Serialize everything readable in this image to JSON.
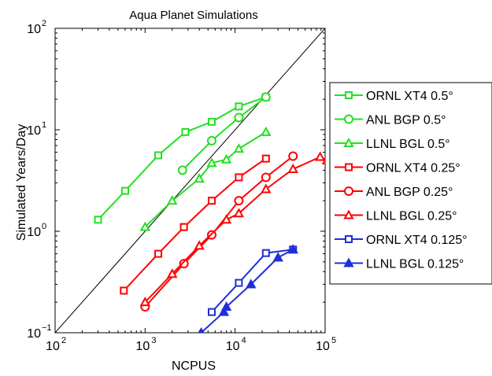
{
  "chart_data": {
    "type": "line",
    "title": "Aqua Planet Simulations",
    "xlabel": "NCPUS",
    "ylabel": "Simulated Years/Day",
    "xscale": "log",
    "yscale": "log",
    "xlim": [
      100,
      100000
    ],
    "ylim": [
      0.1,
      100
    ],
    "x_ticks": [
      {
        "value": 100,
        "base": "10",
        "exp": "2"
      },
      {
        "value": 1000,
        "base": "10",
        "exp": "3"
      },
      {
        "value": 10000,
        "base": "10",
        "exp": "4"
      },
      {
        "value": 100000,
        "base": "10",
        "exp": "5"
      }
    ],
    "y_ticks": [
      {
        "value": 0.1,
        "base": "10",
        "exp": "−1"
      },
      {
        "value": 1,
        "base": "10",
        "exp": "0"
      },
      {
        "value": 10,
        "base": "10",
        "exp": "1"
      },
      {
        "value": 100,
        "base": "10",
        "exp": "2"
      }
    ],
    "grid": false,
    "legend_position": "outside-right",
    "reference_line": {
      "points": [
        [
          100,
          0.1
        ],
        [
          100000,
          100
        ]
      ],
      "color": "#000000"
    },
    "series": [
      {
        "name": "ORNL XT4 0.5°",
        "color": "#22e022",
        "marker": "square",
        "filled": false,
        "points": [
          [
            300,
            1.3
          ],
          [
            600,
            2.5
          ],
          [
            1400,
            5.6
          ],
          [
            2800,
            9.5
          ],
          [
            5500,
            12
          ],
          [
            11000,
            17
          ],
          [
            22000,
            21
          ]
        ]
      },
      {
        "name": "ANL BGP 0.5°",
        "color": "#22e022",
        "marker": "circle",
        "filled": false,
        "points": [
          [
            2600,
            4.0
          ],
          [
            5500,
            7.8
          ],
          [
            11000,
            13.2
          ],
          [
            22000,
            21
          ]
        ]
      },
      {
        "name": "LLNL BGL 0.5°",
        "color": "#22e022",
        "marker": "triangle",
        "filled": false,
        "points": [
          [
            1000,
            1.1
          ],
          [
            2000,
            2.0
          ],
          [
            4000,
            3.3
          ],
          [
            5500,
            4.7
          ],
          [
            8000,
            5.1
          ],
          [
            11000,
            6.5
          ],
          [
            22000,
            9.5
          ]
        ]
      },
      {
        "name": "ORNL XT4 0.25°",
        "color": "#ff0000",
        "marker": "square",
        "filled": false,
        "points": [
          [
            580,
            0.26
          ],
          [
            1400,
            0.6
          ],
          [
            2700,
            1.1
          ],
          [
            5500,
            2.0
          ],
          [
            11000,
            3.4
          ],
          [
            22000,
            5.2
          ]
        ]
      },
      {
        "name": "ANL BGP 0.25°",
        "color": "#ff0000",
        "marker": "circle",
        "filled": false,
        "points": [
          [
            1000,
            0.18
          ],
          [
            2700,
            0.48
          ],
          [
            5500,
            0.92
          ],
          [
            11000,
            2.0
          ],
          [
            22000,
            3.4
          ],
          [
            44000,
            5.5
          ]
        ]
      },
      {
        "name": "LLNL BGL 0.25°",
        "color": "#ff0000",
        "marker": "triangle",
        "filled": false,
        "points": [
          [
            1000,
            0.2
          ],
          [
            2000,
            0.38
          ],
          [
            4000,
            0.72
          ],
          [
            8000,
            1.3
          ],
          [
            11000,
            1.5
          ],
          [
            22000,
            2.6
          ],
          [
            44000,
            4.1
          ],
          [
            88000,
            5.4
          ],
          [
            105000,
            5.0
          ]
        ]
      },
      {
        "name": "ORNL XT4 0.125°",
        "color": "#1f2fd8",
        "marker": "square",
        "filled": false,
        "points": [
          [
            5500,
            0.16
          ],
          [
            11000,
            0.31
          ],
          [
            22000,
            0.61
          ],
          [
            44000,
            0.66
          ]
        ]
      },
      {
        "name": "LLNL BGL 0.125°",
        "color": "#1f2fd8",
        "marker": "triangle",
        "filled": true,
        "points": [
          [
            4200,
            0.1
          ],
          [
            7500,
            0.16
          ],
          [
            8000,
            0.18
          ],
          [
            15000,
            0.3
          ],
          [
            30000,
            0.55
          ],
          [
            44000,
            0.66
          ]
        ]
      }
    ]
  }
}
